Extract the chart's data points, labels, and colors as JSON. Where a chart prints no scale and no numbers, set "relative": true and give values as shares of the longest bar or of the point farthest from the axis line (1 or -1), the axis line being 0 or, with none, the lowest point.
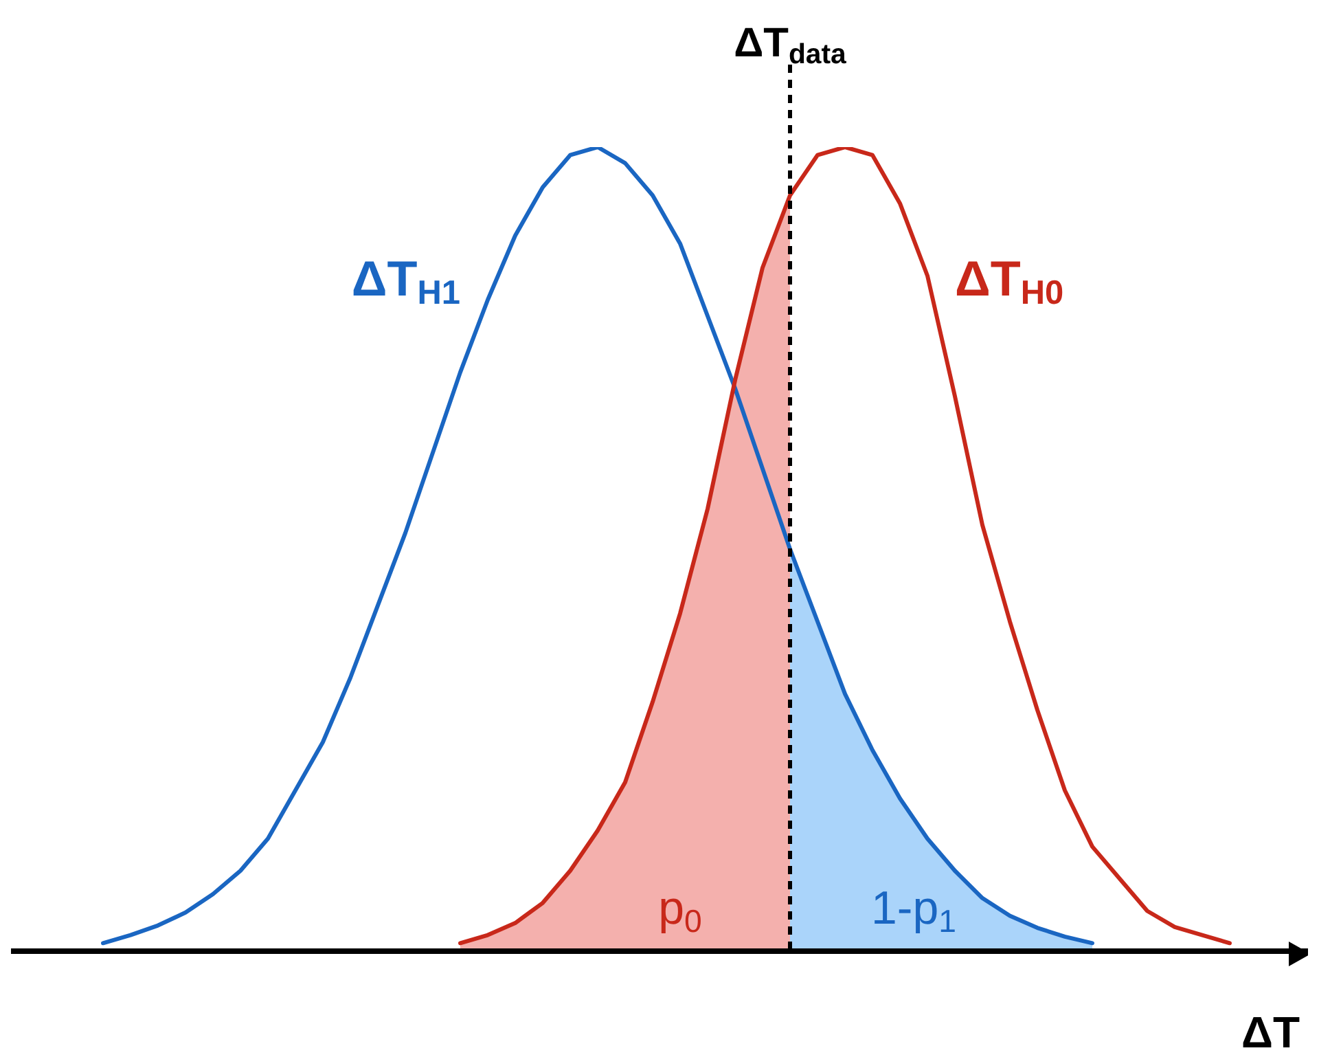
{
  "chart_data": {
    "type": "line",
    "relative": true,
    "xlabel": "ΔT",
    "marker": "none",
    "line_style": "solid",
    "categories": [
      null,
      null,
      null,
      null,
      null,
      null,
      null,
      null,
      null,
      null,
      null,
      null,
      null,
      null,
      null,
      null,
      null,
      null,
      null,
      null,
      null,
      null,
      null,
      null,
      null,
      null,
      null,
      null,
      null,
      null,
      null,
      null,
      null,
      null,
      null,
      null,
      null,
      null,
      null,
      null,
      null,
      null,
      null,
      null
    ],
    "series": [
      {
        "name": "ΔT$_{H1}$",
        "color": "#1a66c2",
        "values": [
          null,
          0.01,
          0.02,
          0.032,
          0.048,
          0.071,
          0.1,
          0.14,
          0.2,
          0.26,
          0.34,
          0.43,
          0.52,
          0.62,
          0.72,
          0.81,
          0.89,
          0.95,
          0.99,
          1,
          0.98,
          0.94,
          0.88,
          0.79,
          0.7,
          0.6,
          0.5,
          0.41,
          0.32,
          0.25,
          0.19,
          0.14,
          0.1,
          0.066,
          0.044,
          0.029,
          0.018,
          0.01,
          null,
          null,
          null,
          null,
          null,
          null
        ]
      },
      {
        "name": "ΔT$_{H0}$",
        "color": "#c8281a",
        "values": [
          null,
          null,
          null,
          null,
          null,
          null,
          null,
          null,
          null,
          null,
          null,
          null,
          null,
          null,
          0.01,
          0.02,
          0.035,
          0.06,
          0.1,
          0.15,
          0.21,
          0.31,
          0.42,
          0.55,
          0.71,
          0.85,
          0.94,
          0.99,
          1,
          0.99,
          0.93,
          0.84,
          0.69,
          0.53,
          0.41,
          0.3,
          0.2,
          0.13,
          0.09,
          0.05,
          0.03,
          0.02,
          0.01,
          null
        ]
      },
      {
        "type": "area",
        "name": "p$_{0}$",
        "color": "#f4b0ad",
        "values": [
          null,
          null,
          null,
          null,
          null,
          null,
          null,
          null,
          null,
          null,
          null,
          null,
          null,
          null,
          0.01,
          0.02,
          0.035,
          0.06,
          0.1,
          0.15,
          0.21,
          0.31,
          0.42,
          0.55,
          0.71,
          0.85,
          0.94,
          null,
          null,
          null,
          null,
          null,
          null,
          null,
          null,
          null,
          null,
          null,
          null,
          null,
          null,
          null,
          null,
          null
        ]
      },
      {
        "type": "area",
        "name": "1-p$_{1}$",
        "color": "#aad4fa",
        "values": [
          null,
          null,
          null,
          null,
          null,
          null,
          null,
          null,
          null,
          null,
          null,
          null,
          null,
          null,
          null,
          null,
          null,
          null,
          null,
          null,
          null,
          null,
          null,
          null,
          null,
          null,
          0.5,
          0.41,
          0.32,
          0.25,
          0.19,
          0.14,
          0.1,
          0.066,
          0.044,
          0.029,
          0.018,
          0.01,
          null,
          null,
          null,
          null,
          null,
          null
        ]
      }
    ],
    "annotations": [
      "ΔT$_{data}$"
    ]
  }
}
